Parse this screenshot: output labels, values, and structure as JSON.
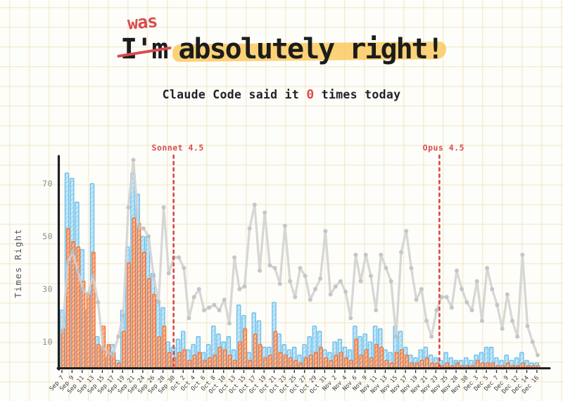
{
  "page": {
    "background": "#FDFDFA",
    "grid_color": "#E8D39E",
    "accent_red": "#D94C4C"
  },
  "title": {
    "struck": "I'm",
    "inserted": "was",
    "rest": "absolutely right!",
    "ink_color": "#1c1c1c",
    "highlight_color": "#FAC756",
    "correction_color": "#D94C4C"
  },
  "subtitle": {
    "prefix": "Claude Code said it ",
    "count": "0",
    "suffix": " times today"
  },
  "chart_data": {
    "type": "bar",
    "title": "",
    "xlabel": "",
    "ylabel": "Times Right",
    "yticks": [
      10,
      30,
      50,
      70
    ],
    "ylim": [
      0,
      80
    ],
    "grid": false,
    "legend": "none",
    "x_tick_labels": [
      "Sep 7",
      "Sep 9",
      "Sep 11",
      "Sep 13",
      "Sep 15",
      "Sep 17",
      "Sep 19",
      "Sep 21",
      "Sep 24",
      "Sep 26",
      "Sep 28",
      "Sep 30",
      "Oct 2",
      "Oct 4",
      "Oct 6",
      "Oct 8",
      "Oct 10",
      "Oct 13",
      "Oct 15",
      "Oct 17",
      "Oct 19",
      "Oct 21",
      "Oct 23",
      "Oct 25",
      "Oct 27",
      "Oct 29",
      "Oct 31",
      "Nov 2",
      "Nov 4",
      "Nov 6",
      "Nov 9",
      "Nov 11",
      "Nov 13",
      "Nov 15",
      "Nov 17",
      "Nov 19",
      "Nov 21",
      "Nov 23",
      "Nov 25",
      "Nov 28",
      "Nov 30",
      "Dec 3",
      "Dec 5",
      "Dec 7",
      "Dec 9",
      "Dec 12",
      "Dec 14",
      "Dec 16"
    ],
    "categories": [
      "Sep 7",
      "Sep 8",
      "Sep 9",
      "Sep 10",
      "Sep 11",
      "Sep 12",
      "Sep 13",
      "Sep 14",
      "Sep 15",
      "Sep 16",
      "Sep 17",
      "Sep 18",
      "Sep 19",
      "Sep 20",
      "Sep 21",
      "Sep 23",
      "Sep 24",
      "Sep 25",
      "Sep 26",
      "Sep 27",
      "Sep 28",
      "Sep 29",
      "Sep 30",
      "Oct 1",
      "Oct 2",
      "Oct 3",
      "Oct 4",
      "Oct 5",
      "Oct 6",
      "Oct 7",
      "Oct 8",
      "Oct 9",
      "Oct 10",
      "Oct 11",
      "Oct 13",
      "Oct 14",
      "Oct 15",
      "Oct 16",
      "Oct 17",
      "Oct 18",
      "Oct 19",
      "Oct 20",
      "Oct 21",
      "Oct 22",
      "Oct 23",
      "Oct 24",
      "Oct 25",
      "Oct 26",
      "Oct 27",
      "Oct 28",
      "Oct 29",
      "Oct 30",
      "Oct 31",
      "Nov 1",
      "Nov 2",
      "Nov 3",
      "Nov 4",
      "Nov 5",
      "Nov 6",
      "Nov 8",
      "Nov 9",
      "Nov 10",
      "Nov 11",
      "Nov 12",
      "Nov 13",
      "Nov 14",
      "Nov 15",
      "Nov 16",
      "Nov 17",
      "Nov 18",
      "Nov 19",
      "Nov 20",
      "Nov 21",
      "Nov 22",
      "Nov 23",
      "Nov 24",
      "Nov 25",
      "Nov 26",
      "Nov 28",
      "Nov 29",
      "Nov 30",
      "Dec 1",
      "Dec 3",
      "Dec 4",
      "Dec 5",
      "Dec 6",
      "Dec 7",
      "Dec 8",
      "Dec 9",
      "Dec 10",
      "Dec 12",
      "Dec 13",
      "Dec 14",
      "Dec 15",
      "Dec 16"
    ],
    "series": [
      {
        "name": "blue-bars",
        "type": "bar",
        "color": "#63BCEA",
        "fill": "#AFDDF5",
        "values": [
          22,
          74,
          72,
          63,
          45,
          22,
          70,
          12,
          8,
          4,
          9,
          3,
          22,
          46,
          74,
          66,
          50,
          50,
          36,
          26,
          23,
          10,
          8,
          11,
          14,
          7,
          9,
          12,
          6,
          9,
          16,
          13,
          10,
          12,
          7,
          24,
          20,
          6,
          21,
          18,
          8,
          8,
          25,
          13,
          9,
          7,
          8,
          5,
          9,
          12,
          16,
          14,
          7,
          6,
          10,
          11,
          8,
          7,
          16,
          12,
          13,
          10,
          16,
          15,
          7,
          6,
          16,
          14,
          8,
          5,
          4,
          7,
          8,
          5,
          4,
          3,
          6,
          4,
          3,
          3,
          4,
          3,
          5,
          6,
          8,
          8,
          4,
          3,
          5,
          3,
          4,
          6,
          3,
          2,
          2
        ]
      },
      {
        "name": "orange-bars",
        "type": "bar",
        "color": "#EF7038",
        "fill": "#F79F6E",
        "values": [
          15,
          53,
          48,
          46,
          33,
          28,
          44,
          9,
          16,
          9,
          6,
          2,
          14,
          40,
          57,
          55,
          44,
          34,
          28,
          12,
          16,
          6,
          4,
          6,
          7,
          3,
          5,
          6,
          3,
          4,
          5,
          8,
          7,
          5,
          3,
          10,
          15,
          3,
          13,
          9,
          4,
          5,
          14,
          6,
          5,
          4,
          3,
          2,
          4,
          5,
          6,
          8,
          4,
          3,
          5,
          6,
          4,
          3,
          11,
          5,
          7,
          4,
          9,
          8,
          3,
          2,
          6,
          7,
          5,
          2,
          2,
          3,
          4,
          2,
          2,
          1,
          2,
          1,
          2,
          1,
          1,
          1,
          3,
          2,
          2,
          2,
          1,
          1,
          2,
          1,
          1,
          2,
          1,
          1,
          1
        ]
      },
      {
        "name": "trend-line",
        "type": "line",
        "color": "#D2D2D2",
        "dot_color": "#BFBFBF",
        "values": [
          14,
          40,
          44,
          37,
          30,
          28,
          35,
          25,
          8,
          6,
          5,
          12,
          20,
          61,
          79,
          54,
          53,
          50,
          35,
          25,
          61,
          36,
          42,
          42,
          38,
          19,
          27,
          30,
          22,
          23,
          24,
          22,
          26,
          17,
          42,
          30,
          31,
          53,
          62,
          37,
          59,
          39,
          38,
          32,
          54,
          33,
          27,
          38,
          35,
          26,
          30,
          34,
          52,
          28,
          31,
          33,
          29,
          19,
          43,
          33,
          43,
          35,
          22,
          43,
          38,
          33,
          12,
          44,
          52,
          38,
          26,
          30,
          18,
          12,
          22,
          27,
          27,
          23,
          37,
          30,
          25,
          22,
          33,
          18,
          38,
          30,
          24,
          15,
          28,
          18,
          12,
          43,
          16,
          10,
          5
        ]
      }
    ],
    "annotations": [
      {
        "label": "Sonnet 4.5",
        "x_index": 22.1,
        "color": "#D94C4C"
      },
      {
        "label": "Opus 4.5",
        "x_index": 74.7,
        "color": "#D94C4C"
      }
    ]
  }
}
